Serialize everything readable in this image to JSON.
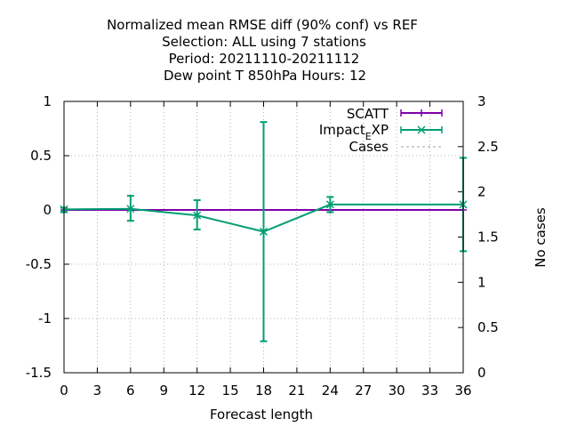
{
  "chart_data": {
    "type": "line",
    "title": [
      "Normalized mean RMSE diff (90% conf) vs REF",
      "Selection: ALL using     7 stations",
      "Period: 20211110-20211112",
      "Dew point T 850hPa   Hours:  12"
    ],
    "xlabel": "Forecast length",
    "ylabel": "",
    "y2label": "No cases",
    "xlim": [
      0,
      36
    ],
    "ylim": [
      -1.5,
      1
    ],
    "y2lim": [
      0,
      3
    ],
    "xticks": [
      "0",
      "3",
      "6",
      "9",
      "12",
      "15",
      "18",
      "21",
      "24",
      "27",
      "30",
      "33",
      "36"
    ],
    "yticks": [
      "1",
      "0.5",
      "0",
      "-0.5",
      "-1",
      "-1.5"
    ],
    "y2ticks": [
      "3",
      "2.5",
      "2",
      "1.5",
      "1",
      "0.5",
      "0"
    ],
    "grid": true,
    "legend_position": "top-right",
    "series": [
      {
        "name": "SCATT",
        "color": "#8000a8",
        "marker": "plus",
        "x": [
          0,
          6,
          12,
          18,
          24,
          36
        ],
        "y": [
          0,
          0,
          0,
          0,
          0,
          0
        ]
      },
      {
        "name_main": "Impact",
        "name_sub": "E",
        "name_tail": "XP",
        "color": "#009e73",
        "marker": "x",
        "x": [
          0,
          6,
          12,
          18,
          24,
          36
        ],
        "y": [
          0.005,
          0.01,
          -0.05,
          -0.2,
          0.05,
          0.05
        ],
        "err_low": [
          -0.02,
          -0.1,
          -0.18,
          -1.21,
          -0.02,
          -0.38
        ],
        "err_high": [
          0.02,
          0.13,
          0.09,
          0.81,
          0.12,
          0.48
        ]
      },
      {
        "name": "Cases",
        "color": "#a0a0a0",
        "style": "dashed",
        "axis": "y2"
      }
    ]
  }
}
